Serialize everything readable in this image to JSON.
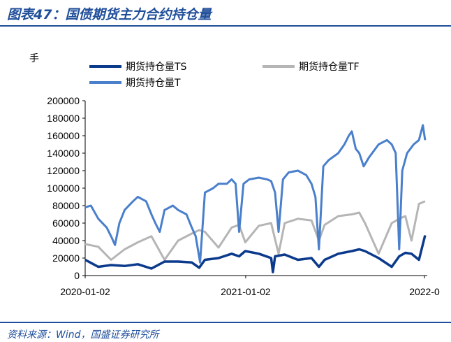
{
  "figure": {
    "title": "图表47：国债期货主力合约持仓量",
    "source": "资料来源：Wind，国盛证券研究所"
  },
  "chart_data": {
    "type": "line",
    "title": "",
    "ylabel": "手",
    "xlabel": "",
    "ylim": [
      0,
      200000
    ],
    "yticks": [
      "200000",
      "180000",
      "160000",
      "140000",
      "120000",
      "100000",
      "80000",
      "60000",
      "40000",
      "20000",
      "0"
    ],
    "xtick_labels": [
      "2020-01-02",
      "2021-01-02",
      "2022-0"
    ],
    "xlim": [
      "2020-01-02",
      "2022-02-20"
    ],
    "grid": false,
    "legend_placement": "top",
    "series": [
      {
        "name": "期货持仓量TS",
        "color": "#0b3a8c",
        "x": [
          "2020-01-02",
          "2020-02-01",
          "2020-03-01",
          "2020-04-01",
          "2020-05-01",
          "2020-06-01",
          "2020-07-01",
          "2020-08-01",
          "2020-09-01",
          "2020-09-18",
          "2020-10-01",
          "2020-11-01",
          "2020-12-01",
          "2020-12-18",
          "2021-01-01",
          "2021-02-01",
          "2021-03-01",
          "2021-03-05",
          "2021-03-10",
          "2021-04-01",
          "2021-05-01",
          "2021-06-01",
          "2021-06-18",
          "2021-07-01",
          "2021-08-01",
          "2021-09-01",
          "2021-09-18",
          "2021-10-01",
          "2021-11-01",
          "2021-12-01",
          "2021-12-18",
          "2022-01-01",
          "2022-01-15",
          "2022-02-01",
          "2022-02-15"
        ],
        "values": [
          18000,
          10000,
          12000,
          11000,
          13000,
          8000,
          16000,
          16000,
          15000,
          9000,
          18000,
          20000,
          25000,
          22000,
          28000,
          25000,
          20000,
          4000,
          22000,
          24000,
          18000,
          20000,
          10000,
          18000,
          25000,
          28000,
          30000,
          28000,
          20000,
          10000,
          22000,
          26000,
          25000,
          18000,
          46000
        ]
      },
      {
        "name": "期货持仓量TF",
        "color": "#b5b5b5",
        "x": [
          "2020-01-02",
          "2020-02-01",
          "2020-03-01",
          "2020-04-01",
          "2020-05-01",
          "2020-06-01",
          "2020-07-01",
          "2020-08-01",
          "2020-09-01",
          "2020-09-18",
          "2020-10-01",
          "2020-11-01",
          "2020-12-01",
          "2020-12-18",
          "2021-01-01",
          "2021-02-01",
          "2021-03-01",
          "2021-03-18",
          "2021-04-01",
          "2021-05-01",
          "2021-06-01",
          "2021-06-18",
          "2021-07-01",
          "2021-08-01",
          "2021-09-01",
          "2021-09-18",
          "2021-10-01",
          "2021-11-01",
          "2021-12-01",
          "2021-12-18",
          "2022-01-01",
          "2022-01-15",
          "2022-02-01",
          "2022-02-15"
        ],
        "values": [
          36000,
          33000,
          18000,
          30000,
          38000,
          45000,
          18000,
          40000,
          48000,
          52000,
          50000,
          32000,
          55000,
          58000,
          38000,
          57000,
          60000,
          25000,
          60000,
          65000,
          63000,
          40000,
          58000,
          68000,
          70000,
          72000,
          60000,
          25000,
          60000,
          65000,
          68000,
          40000,
          82000,
          85000
        ]
      },
      {
        "name": "期货持仓量T",
        "color": "#4a7fcc",
        "x": [
          "2020-01-02",
          "2020-01-15",
          "2020-02-01",
          "2020-02-20",
          "2020-03-01",
          "2020-03-10",
          "2020-03-20",
          "2020-04-01",
          "2020-04-20",
          "2020-05-01",
          "2020-05-20",
          "2020-06-01",
          "2020-06-10",
          "2020-06-20",
          "2020-07-01",
          "2020-07-20",
          "2020-08-01",
          "2020-08-20",
          "2020-09-01",
          "2020-09-10",
          "2020-09-20",
          "2020-10-01",
          "2020-10-20",
          "2020-11-01",
          "2020-11-20",
          "2020-12-01",
          "2020-12-10",
          "2020-12-18",
          "2020-12-28",
          "2021-01-10",
          "2021-02-01",
          "2021-02-20",
          "2021-03-01",
          "2021-03-10",
          "2021-03-18",
          "2021-03-28",
          "2021-04-10",
          "2021-05-01",
          "2021-05-20",
          "2021-06-01",
          "2021-06-10",
          "2021-06-18",
          "2021-06-28",
          "2021-07-10",
          "2021-08-01",
          "2021-08-15",
          "2021-08-25",
          "2021-09-01",
          "2021-09-10",
          "2021-09-18",
          "2021-09-28",
          "2021-10-10",
          "2021-11-01",
          "2021-11-20",
          "2021-12-01",
          "2021-12-10",
          "2021-12-18",
          "2021-12-25",
          "2022-01-05",
          "2022-01-20",
          "2022-02-01",
          "2022-02-10",
          "2022-02-15"
        ],
        "values": [
          78000,
          80000,
          65000,
          55000,
          45000,
          35000,
          60000,
          75000,
          85000,
          90000,
          85000,
          70000,
          60000,
          50000,
          75000,
          80000,
          75000,
          70000,
          55000,
          45000,
          15000,
          95000,
          100000,
          105000,
          105000,
          110000,
          105000,
          50000,
          105000,
          110000,
          112000,
          110000,
          108000,
          95000,
          50000,
          110000,
          118000,
          120000,
          115000,
          105000,
          90000,
          30000,
          125000,
          132000,
          140000,
          150000,
          160000,
          165000,
          145000,
          140000,
          125000,
          135000,
          150000,
          155000,
          150000,
          140000,
          30000,
          120000,
          140000,
          150000,
          155000,
          172000,
          155000
        ]
      }
    ]
  }
}
